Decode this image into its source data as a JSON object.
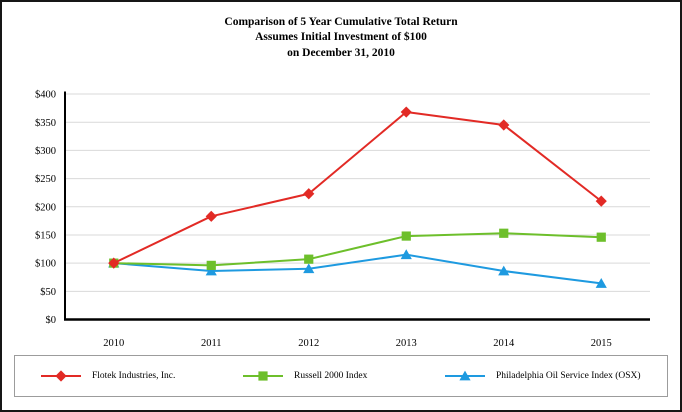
{
  "chart_data": {
    "type": "line",
    "title_lines": [
      "Comparison of 5 Year Cumulative Total Return",
      "Assumes Initial Investment of $100",
      "on December 31, 2010"
    ],
    "categories": [
      "2010",
      "2011",
      "2012",
      "2013",
      "2014",
      "2015"
    ],
    "series": [
      {
        "name": "Flotek Industries, Inc.",
        "marker": "diamond",
        "color": "#E22A25",
        "values": [
          100,
          183,
          223,
          368,
          345,
          210
        ]
      },
      {
        "name": "Russell 2000 Index",
        "marker": "square",
        "color": "#6DBF2B",
        "values": [
          100,
          96,
          107,
          148,
          153,
          146
        ]
      },
      {
        "name": "Philadelphia Oil Service Index (OSX)",
        "marker": "triangle",
        "color": "#1E9AE0",
        "values": [
          100,
          86,
          90,
          115,
          86,
          64
        ]
      }
    ],
    "ylim": [
      0,
      400
    ],
    "ytick_step": 50,
    "yticks": [
      {
        "value": 0,
        "label": "$0"
      },
      {
        "value": 50,
        "label": "$50"
      },
      {
        "value": 100,
        "label": "$100"
      },
      {
        "value": 150,
        "label": "$150"
      },
      {
        "value": 200,
        "label": "$200"
      },
      {
        "value": 250,
        "label": "$250"
      },
      {
        "value": 300,
        "label": "$300"
      },
      {
        "value": 350,
        "label": "$350"
      },
      {
        "value": 400,
        "label": "$400"
      }
    ],
    "grid": true,
    "gridline_color": "#D9D9D9",
    "axis_color": "#000000",
    "legend_position": "bottom"
  }
}
